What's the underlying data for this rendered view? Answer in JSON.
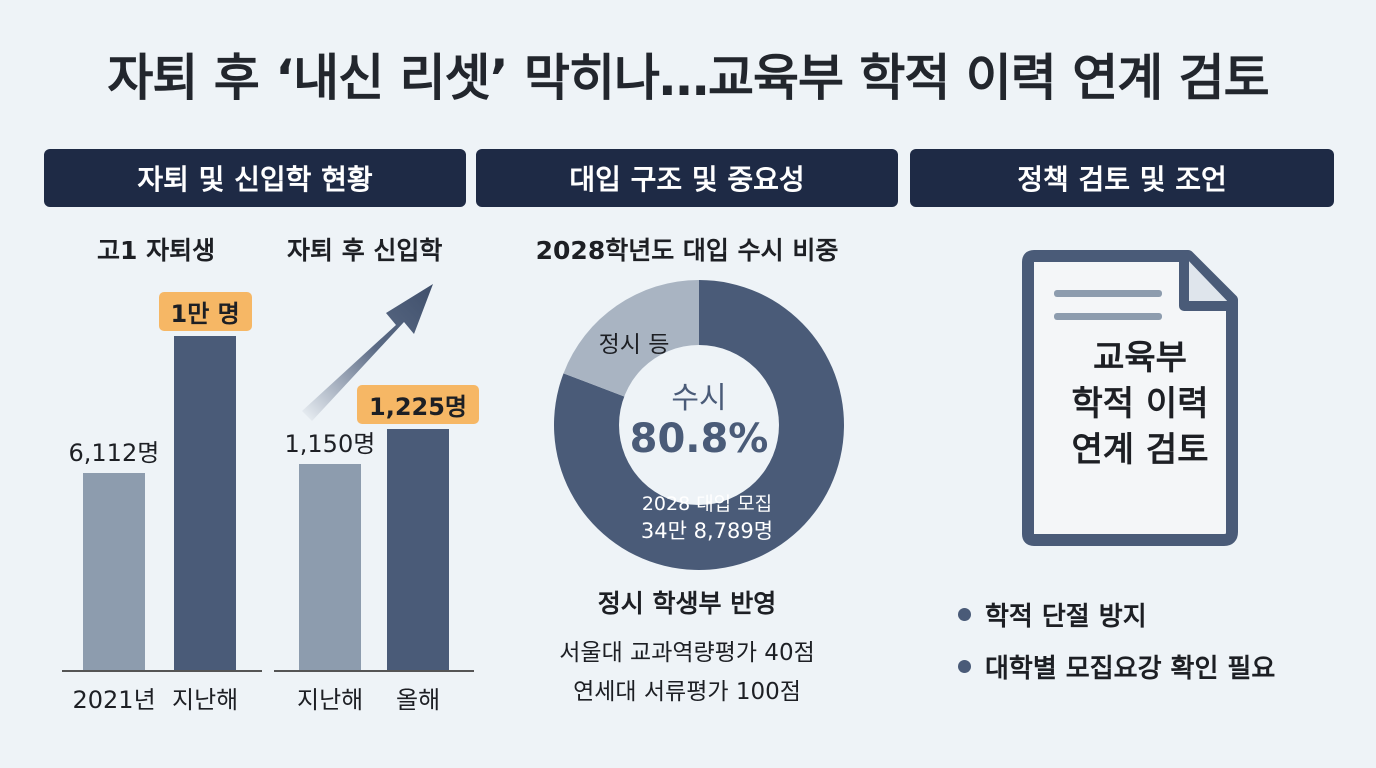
{
  "title": "자퇴 후 ‘내신 리셋’ 막히나…교육부 학적 이력 연계 검토",
  "sections": [
    {
      "heading": "자퇴 및 신입학 현황"
    },
    {
      "heading": "대입 구조 및 중요성"
    },
    {
      "heading": "정책 검토 및 조언"
    }
  ],
  "colors": {
    "header_bg": "#1e2a45",
    "bar_light": "#8d9cae",
    "bar_dark": "#4a5b78",
    "badge": "#f6b765",
    "pie_light": "#a9b4c2",
    "pie_dark": "#4a5b78",
    "background": "#eef3f7"
  },
  "chart_data": [
    {
      "type": "bar",
      "title": "고1 자퇴생",
      "categories": [
        "2021년",
        "지난해"
      ],
      "values": [
        6112,
        10000
      ],
      "value_labels": [
        "6,112명",
        "1만 명"
      ],
      "highlight": [
        false,
        true
      ]
    },
    {
      "type": "bar",
      "title": "자퇴 후 신입학",
      "categories": [
        "지난해",
        "올해"
      ],
      "values": [
        1150,
        1225
      ],
      "value_labels": [
        "1,150명",
        "1,225명"
      ],
      "highlight": [
        false,
        true
      ],
      "trend_arrow": "up-right"
    },
    {
      "type": "pie",
      "title": "2028학년도 대입 수시 비중",
      "slices": [
        {
          "label": "수시",
          "value": 80.8
        },
        {
          "label": "정시 등",
          "value": 19.2
        }
      ],
      "center_label": "수시",
      "center_value": "80.8%",
      "inner_note": [
        "2028 대입 모집",
        "34만 8,789명"
      ]
    }
  ],
  "jeongsi": {
    "heading": "정시 학생부 반영",
    "lines": [
      "서울대 교과역량평가 40점",
      "연세대 서류평가 100점"
    ]
  },
  "document": {
    "icon": "document-icon",
    "lines": [
      "교육부",
      "학적 이력",
      "연계 검토"
    ]
  },
  "bullets": [
    "학적 단절 방지",
    "대학별 모집요강 확인 필요"
  ]
}
